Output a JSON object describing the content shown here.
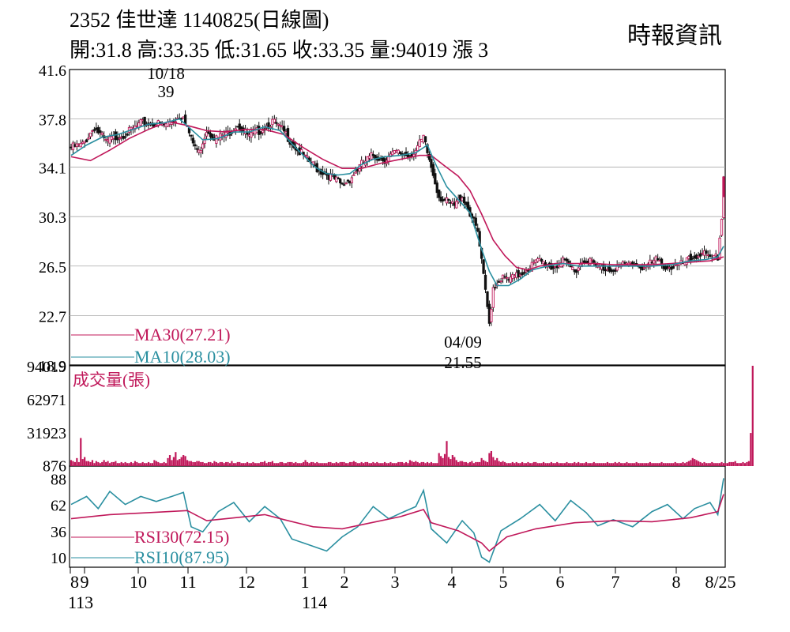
{
  "header": {
    "title": "2352  佳世達 1140825(日線圖)",
    "ohlc": "開:31.8 高:33.35 低:31.65 收:33.35 量:94019 漲 3",
    "source": "時報資訊"
  },
  "chart_data": [
    {
      "type": "candlestick",
      "title": "2352 佳世達 1140825(日線圖)",
      "ylim": [
        18.9,
        41.6
      ],
      "yticks": [
        "41.6",
        "37.8",
        "34.1",
        "30.3",
        "26.5",
        "22.7",
        "18.9"
      ],
      "annotations": [
        {
          "date": "10/18",
          "value": "39"
        },
        {
          "date": "04/09",
          "value": "21.55"
        }
      ],
      "series": [
        {
          "name": "MA30(27.21)",
          "color": "#c0185a"
        },
        {
          "name": "MA10(28.03)",
          "color": "#2a8fa0"
        }
      ],
      "close_path": [
        [
          0,
          35.6
        ],
        [
          6,
          35.8
        ],
        [
          12,
          37.2
        ],
        [
          18,
          36.0
        ],
        [
          24,
          36.5
        ],
        [
          30,
          36.8
        ],
        [
          36,
          37.4
        ],
        [
          42,
          37.5
        ],
        [
          48,
          37.3
        ],
        [
          54,
          37.8
        ],
        [
          58,
          38.2
        ],
        [
          62,
          36.2
        ],
        [
          66,
          35.2
        ],
        [
          70,
          37.0
        ],
        [
          75,
          36.3
        ],
        [
          80,
          36.6
        ],
        [
          86,
          37.4
        ],
        [
          92,
          36.4
        ],
        [
          98,
          37.0
        ],
        [
          104,
          37.6
        ],
        [
          110,
          36.8
        ],
        [
          116,
          35.6
        ],
        [
          122,
          34.6
        ],
        [
          128,
          33.9
        ],
        [
          134,
          33.4
        ],
        [
          140,
          32.7
        ],
        [
          144,
          33.2
        ],
        [
          150,
          34.3
        ],
        [
          156,
          35.0
        ],
        [
          162,
          34.7
        ],
        [
          168,
          35.2
        ],
        [
          174,
          35.0
        ],
        [
          178,
          35.4
        ],
        [
          182,
          36.3
        ],
        [
          186,
          34.1
        ],
        [
          190,
          31.9
        ],
        [
          194,
          31.4
        ],
        [
          198,
          31.1
        ],
        [
          202,
          31.9
        ],
        [
          206,
          30.6
        ],
        [
          210,
          29.1
        ],
        [
          214,
          24.5
        ],
        [
          216,
          22.1
        ],
        [
          218,
          24.9
        ],
        [
          222,
          25.6
        ],
        [
          226,
          25.4
        ],
        [
          230,
          25.7
        ],
        [
          236,
          26.4
        ],
        [
          242,
          26.9
        ],
        [
          248,
          26.4
        ],
        [
          254,
          26.8
        ],
        [
          260,
          26.2
        ],
        [
          266,
          27.1
        ],
        [
          272,
          26.4
        ],
        [
          278,
          26.3
        ],
        [
          284,
          26.5
        ],
        [
          290,
          26.7
        ],
        [
          296,
          26.4
        ],
        [
          302,
          26.9
        ],
        [
          308,
          26.4
        ],
        [
          314,
          26.5
        ],
        [
          320,
          27.0
        ],
        [
          326,
          27.6
        ],
        [
          330,
          26.9
        ],
        [
          334,
          27.2
        ],
        [
          336,
          30.1
        ],
        [
          337,
          33.35
        ]
      ],
      "ma30": [
        [
          0,
          34.9
        ],
        [
          10,
          34.6
        ],
        [
          20,
          35.4
        ],
        [
          30,
          36.3
        ],
        [
          40,
          37.0
        ],
        [
          50,
          37.6
        ],
        [
          60,
          37.3
        ],
        [
          70,
          36.9
        ],
        [
          80,
          36.8
        ],
        [
          90,
          37.0
        ],
        [
          100,
          37.0
        ],
        [
          110,
          36.6
        ],
        [
          120,
          35.6
        ],
        [
          130,
          34.7
        ],
        [
          140,
          34.0
        ],
        [
          150,
          34.0
        ],
        [
          160,
          34.4
        ],
        [
          170,
          34.7
        ],
        [
          180,
          35.0
        ],
        [
          186,
          35.0
        ],
        [
          192,
          34.3
        ],
        [
          200,
          33.4
        ],
        [
          206,
          32.3
        ],
        [
          212,
          30.5
        ],
        [
          218,
          28.5
        ],
        [
          224,
          27.3
        ],
        [
          230,
          26.4
        ],
        [
          236,
          26.2
        ],
        [
          242,
          26.5
        ],
        [
          250,
          26.7
        ],
        [
          260,
          26.7
        ],
        [
          270,
          26.7
        ],
        [
          280,
          26.6
        ],
        [
          290,
          26.6
        ],
        [
          300,
          26.6
        ],
        [
          310,
          26.7
        ],
        [
          320,
          26.8
        ],
        [
          330,
          26.9
        ],
        [
          337,
          27.21
        ]
      ],
      "ma10": [
        [
          0,
          35.0
        ],
        [
          8,
          35.8
        ],
        [
          16,
          36.4
        ],
        [
          24,
          36.6
        ],
        [
          32,
          37.0
        ],
        [
          40,
          37.4
        ],
        [
          48,
          37.5
        ],
        [
          56,
          37.8
        ],
        [
          62,
          37.0
        ],
        [
          68,
          36.2
        ],
        [
          76,
          36.3
        ],
        [
          84,
          36.8
        ],
        [
          92,
          36.8
        ],
        [
          100,
          37.2
        ],
        [
          108,
          36.9
        ],
        [
          114,
          35.9
        ],
        [
          120,
          35.0
        ],
        [
          126,
          34.1
        ],
        [
          132,
          33.6
        ],
        [
          138,
          33.5
        ],
        [
          144,
          33.6
        ],
        [
          150,
          34.3
        ],
        [
          156,
          34.7
        ],
        [
          162,
          34.9
        ],
        [
          170,
          35.0
        ],
        [
          178,
          35.2
        ],
        [
          184,
          35.8
        ],
        [
          188,
          34.4
        ],
        [
          194,
          32.6
        ],
        [
          200,
          31.6
        ],
        [
          206,
          30.6
        ],
        [
          212,
          27.8
        ],
        [
          216,
          26.1
        ],
        [
          220,
          25.0
        ],
        [
          226,
          25.0
        ],
        [
          232,
          25.5
        ],
        [
          238,
          26.2
        ],
        [
          246,
          26.5
        ],
        [
          254,
          26.7
        ],
        [
          262,
          26.5
        ],
        [
          270,
          26.5
        ],
        [
          280,
          26.5
        ],
        [
          290,
          26.5
        ],
        [
          300,
          26.5
        ],
        [
          310,
          26.6
        ],
        [
          320,
          26.9
        ],
        [
          328,
          27.0
        ],
        [
          334,
          27.2
        ],
        [
          337,
          28.03
        ]
      ]
    },
    {
      "type": "bar",
      "title": "成交量(張)",
      "ylim": [
        0,
        94019
      ],
      "yticks": [
        "94019",
        "62971",
        "31923",
        "876"
      ],
      "values": [
        6,
        5,
        4,
        8,
        4,
        28,
        7,
        9,
        5,
        5,
        4,
        6,
        3,
        5,
        4,
        3,
        4,
        6,
        4,
        5,
        3,
        4,
        4,
        5,
        3,
        3,
        4,
        3,
        4,
        3,
        3,
        4,
        3,
        5,
        4,
        3,
        3,
        4,
        3,
        3,
        4,
        3,
        3,
        6,
        5,
        4,
        3,
        3,
        4,
        3,
        8,
        11,
        6,
        9,
        14,
        6,
        7,
        9,
        11,
        10,
        6,
        5,
        5,
        4,
        4,
        5,
        5,
        4,
        4,
        3,
        3,
        4,
        4,
        3,
        5,
        4,
        3,
        4,
        4,
        3,
        4,
        4,
        3,
        5,
        3,
        3,
        4,
        4,
        3,
        3,
        3,
        4,
        3,
        3,
        4,
        3,
        3,
        3,
        4,
        4,
        5,
        3,
        4,
        4,
        5,
        3,
        3,
        3,
        4,
        4,
        3,
        3,
        4,
        4,
        4,
        3,
        4,
        3,
        3,
        3,
        4,
        6,
        4,
        3,
        4,
        4,
        3,
        4,
        3,
        3,
        3,
        3,
        3,
        4,
        4,
        3,
        3,
        4,
        3,
        4,
        4,
        4,
        3,
        3,
        4,
        4,
        5,
        4,
        3,
        3,
        4,
        3,
        4,
        4,
        3,
        3,
        4,
        3,
        4,
        3,
        3,
        3,
        4,
        3,
        3,
        4,
        3,
        3,
        3,
        4,
        4,
        4,
        3,
        4,
        3,
        6,
        5,
        4,
        5,
        4,
        3,
        4,
        4,
        3,
        4,
        3,
        4,
        3,
        3,
        3,
        13,
        10,
        8,
        12,
        25,
        9,
        7,
        11,
        9,
        6,
        4,
        5,
        5,
        4,
        4,
        3,
        4,
        5,
        3,
        4,
        4,
        4,
        8,
        6,
        5,
        4,
        13,
        15,
        9,
        6,
        8,
        5,
        4,
        5,
        4,
        3,
        3,
        3,
        4,
        3,
        4,
        3,
        3,
        4,
        3,
        3,
        4,
        3,
        3,
        4,
        4,
        3,
        3,
        3,
        4,
        3,
        3,
        3,
        4,
        3,
        3,
        4,
        3,
        3,
        3,
        3,
        4,
        3,
        3,
        3,
        4,
        3,
        4,
        3,
        3,
        3,
        4,
        3,
        3,
        3,
        4,
        3,
        3,
        3,
        3,
        3,
        3,
        4,
        3,
        3,
        3,
        4,
        3,
        4,
        3,
        3,
        3,
        4,
        3,
        3,
        3,
        3,
        4,
        3,
        3,
        3,
        3,
        3,
        3,
        4,
        3,
        3,
        3,
        3,
        3,
        4,
        3,
        3,
        3,
        3,
        3,
        3,
        4,
        3,
        3,
        3,
        4,
        3,
        4,
        5,
        6,
        8,
        7,
        6,
        5,
        4,
        3,
        4,
        3,
        3,
        3,
        4,
        3,
        3,
        3,
        3,
        4,
        3,
        3,
        3,
        4,
        4,
        4,
        5,
        3,
        3,
        3,
        4,
        3,
        4,
        5,
        33,
        100
      ]
    },
    {
      "type": "line",
      "ylim": [
        0,
        100
      ],
      "yticks": [
        "88",
        "62",
        "36",
        "10"
      ],
      "series": [
        {
          "name": "RSI30(72.15)",
          "color": "#c0185a",
          "values": [
            [
              0,
              48
            ],
            [
              20,
              52
            ],
            [
              40,
              54
            ],
            [
              60,
              56
            ],
            [
              70,
              46
            ],
            [
              80,
              48
            ],
            [
              100,
              52
            ],
            [
              110,
              47
            ],
            [
              125,
              40
            ],
            [
              140,
              38
            ],
            [
              155,
              44
            ],
            [
              170,
              50
            ],
            [
              182,
              57
            ],
            [
              186,
              44
            ],
            [
              200,
              36
            ],
            [
              212,
              24
            ],
            [
              216,
              16
            ],
            [
              225,
              30
            ],
            [
              240,
              38
            ],
            [
              260,
              44
            ],
            [
              280,
              46
            ],
            [
              300,
              45
            ],
            [
              320,
              49
            ],
            [
              334,
              55
            ],
            [
              337,
              72.15
            ]
          ]
        },
        {
          "name": "RSI10(87.95)",
          "color": "#2a8fa0",
          "values": [
            [
              0,
              62
            ],
            [
              8,
              70
            ],
            [
              14,
              58
            ],
            [
              20,
              75
            ],
            [
              28,
              62
            ],
            [
              36,
              70
            ],
            [
              44,
              65
            ],
            [
              52,
              70
            ],
            [
              58,
              74
            ],
            [
              62,
              40
            ],
            [
              68,
              35
            ],
            [
              76,
              55
            ],
            [
              84,
              64
            ],
            [
              92,
              45
            ],
            [
              100,
              60
            ],
            [
              108,
              48
            ],
            [
              114,
              28
            ],
            [
              120,
              24
            ],
            [
              126,
              20
            ],
            [
              132,
              16
            ],
            [
              140,
              30
            ],
            [
              148,
              40
            ],
            [
              156,
              60
            ],
            [
              164,
              48
            ],
            [
              172,
              55
            ],
            [
              178,
              60
            ],
            [
              182,
              76
            ],
            [
              186,
              38
            ],
            [
              194,
              24
            ],
            [
              202,
              46
            ],
            [
              208,
              34
            ],
            [
              212,
              10
            ],
            [
              216,
              5
            ],
            [
              222,
              36
            ],
            [
              232,
              48
            ],
            [
              242,
              62
            ],
            [
              250,
              46
            ],
            [
              258,
              66
            ],
            [
              266,
              54
            ],
            [
              272,
              41
            ],
            [
              280,
              47
            ],
            [
              290,
              40
            ],
            [
              300,
              55
            ],
            [
              308,
              62
            ],
            [
              316,
              48
            ],
            [
              322,
              58
            ],
            [
              330,
              64
            ],
            [
              334,
              52
            ],
            [
              337,
              87.95
            ]
          ]
        }
      ]
    }
  ],
  "xaxis": {
    "months": [
      "8",
      "9",
      "10",
      "11",
      "12",
      "1",
      "2",
      "3",
      "4",
      "5",
      "6",
      "7",
      "8",
      "8/25"
    ],
    "years": [
      "113",
      "114"
    ]
  }
}
